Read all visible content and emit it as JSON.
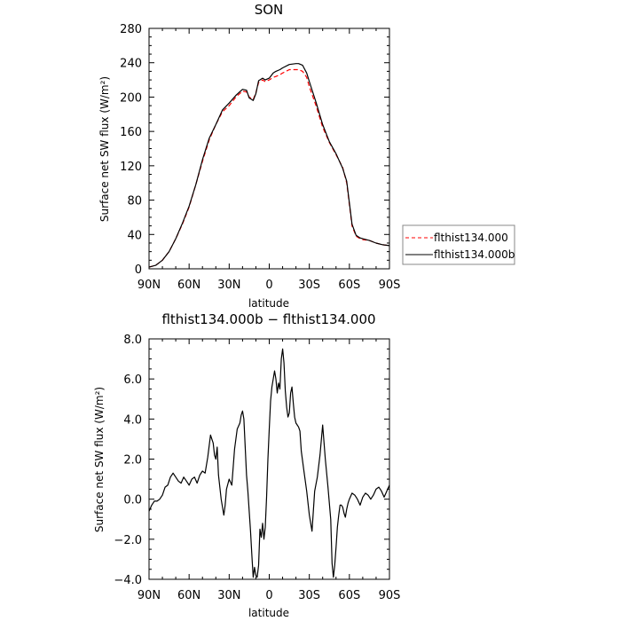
{
  "chart_data": [
    {
      "type": "line",
      "title": "SON",
      "xlabel": "latitude",
      "ylabel": "Surface net SW flux (W/m²)",
      "xlim": [
        90,
        -90
      ],
      "ylim": [
        0,
        280
      ],
      "xticks": [
        90,
        60,
        30,
        0,
        -30,
        -60,
        -90
      ],
      "xtick_labels": [
        "90N",
        "60N",
        "30N",
        "0",
        "30S",
        "60S",
        "90S"
      ],
      "yticks": [
        0,
        40,
        80,
        120,
        160,
        200,
        240,
        280
      ],
      "ytick_labels": [
        "0",
        "40",
        "80",
        "120",
        "160",
        "200",
        "240",
        "280"
      ],
      "legend": "right",
      "x": [
        90,
        85,
        80,
        75,
        70,
        65,
        60,
        55,
        50,
        45,
        40,
        35,
        30,
        25,
        20,
        17,
        15,
        12,
        10,
        8,
        5,
        3,
        0,
        -3,
        -5,
        -8,
        -10,
        -15,
        -20,
        -22,
        -25,
        -28,
        -30,
        -35,
        -40,
        -45,
        -50,
        -55,
        -58,
        -60,
        -62,
        -65,
        -68,
        -70,
        -75,
        -80,
        -85,
        -90
      ],
      "series": [
        {
          "name": "flthist134.000",
          "color": "#ff0000",
          "dash": true,
          "values": [
            2,
            4,
            10,
            20,
            35,
            52,
            72,
            98,
            125,
            150,
            168,
            183,
            190,
            200,
            207,
            206,
            200,
            197,
            205,
            217,
            220,
            218,
            220,
            223,
            224,
            226,
            228,
            232,
            232,
            232,
            230,
            223,
            212,
            190,
            165,
            147,
            133,
            118,
            100,
            75,
            50,
            38,
            35,
            34,
            33,
            30,
            28,
            27
          ]
        },
        {
          "name": "flthist134.000b",
          "color": "#000000",
          "dash": false,
          "values": [
            2,
            4,
            10,
            20,
            35,
            53,
            73,
            98,
            127,
            152,
            168,
            185,
            193,
            202,
            209,
            208,
            199,
            196,
            204,
            219,
            222,
            220,
            222,
            228,
            230,
            232,
            234,
            238,
            239,
            239,
            237,
            228,
            218,
            194,
            168,
            148,
            134,
            117,
            102,
            77,
            52,
            39,
            36,
            35,
            33,
            30,
            28,
            27
          ]
        }
      ]
    },
    {
      "type": "line",
      "title": "flthist134.000b − flthist134.000",
      "xlabel": "latitude",
      "ylabel": "Surface net SW flux (W/m²)",
      "xlim": [
        90,
        -90
      ],
      "ylim": [
        -4,
        8
      ],
      "xticks": [
        90,
        60,
        30,
        0,
        -30,
        -60,
        -90
      ],
      "xtick_labels": [
        "90N",
        "60N",
        "30N",
        "0",
        "30S",
        "60S",
        "90S"
      ],
      "yticks": [
        -4,
        -2,
        0,
        2,
        4,
        6,
        8
      ],
      "ytick_labels": [
        "−4.0",
        "−2.0",
        "0.0",
        "2.0",
        "4.0",
        "6.0",
        "8.0"
      ],
      "x": [
        90,
        88,
        86,
        84,
        82,
        80,
        78,
        76,
        74,
        72,
        70,
        68,
        66,
        64,
        62,
        60,
        58,
        56,
        54,
        52,
        50,
        48,
        46,
        44,
        42,
        41,
        40,
        39,
        38,
        36,
        34,
        33,
        32,
        30,
        28,
        26,
        24,
        22,
        21,
        20,
        19,
        18,
        17,
        16,
        15,
        14,
        13,
        12,
        11,
        10,
        9,
        8,
        7,
        6,
        5,
        4,
        3,
        2,
        1,
        0,
        -1,
        -2,
        -3,
        -4,
        -5,
        -6,
        -7,
        -8,
        -9,
        -10,
        -11,
        -12,
        -13,
        -14,
        -15,
        -16,
        -17,
        -18,
        -19,
        -20,
        -21,
        -22,
        -23,
        -24,
        -26,
        -28,
        -30,
        -32,
        -34,
        -36,
        -38,
        -40,
        -42,
        -44,
        -46,
        -47,
        -48,
        -49,
        -50,
        -51,
        -52,
        -53,
        -54,
        -55,
        -56,
        -57,
        -58,
        -59,
        -60,
        -62,
        -64,
        -66,
        -68,
        -70,
        -72,
        -74,
        -76,
        -78,
        -80,
        -82,
        -84,
        -86,
        -88,
        -90
      ],
      "series": [
        {
          "name": "",
          "color": "#000000",
          "dash": false,
          "values": [
            -0.6,
            -0.3,
            -0.1,
            -0.1,
            0.0,
            0.2,
            0.6,
            0.7,
            1.1,
            1.3,
            1.1,
            0.9,
            0.8,
            1.1,
            0.9,
            0.7,
            1.0,
            1.1,
            0.8,
            1.2,
            1.4,
            1.3,
            2.1,
            3.2,
            2.8,
            2.2,
            2.0,
            2.6,
            1.2,
            0.0,
            -0.8,
            -0.3,
            0.5,
            1.0,
            0.7,
            2.5,
            3.5,
            3.8,
            4.2,
            4.4,
            4.0,
            2.6,
            1.2,
            0.4,
            -0.6,
            -1.6,
            -2.8,
            -3.9,
            -3.4,
            -3.8,
            -3.9,
            -3.3,
            -1.5,
            -1.9,
            -1.2,
            -2.0,
            -1.4,
            0.1,
            2.0,
            3.5,
            4.9,
            5.6,
            6.0,
            6.4,
            6.0,
            5.3,
            5.8,
            5.5,
            7.0,
            7.5,
            6.8,
            5.4,
            4.6,
            4.1,
            4.3,
            5.3,
            5.6,
            4.8,
            4.1,
            3.8,
            3.7,
            3.6,
            3.4,
            2.4,
            1.4,
            0.4,
            -0.8,
            -1.6,
            0.4,
            1.1,
            2.2,
            3.7,
            2.0,
            0.6,
            -1.0,
            -3.2,
            -3.9,
            -3.3,
            -2.4,
            -1.4,
            -0.8,
            -0.3,
            -0.3,
            -0.4,
            -0.7,
            -0.9,
            -0.5,
            -0.2,
            0.0,
            0.3,
            0.2,
            0.0,
            -0.3,
            0.1,
            0.3,
            0.2,
            0.0,
            0.2,
            0.5,
            0.6,
            0.4,
            0.1,
            0.4,
            0.7
          ]
        }
      ]
    }
  ]
}
